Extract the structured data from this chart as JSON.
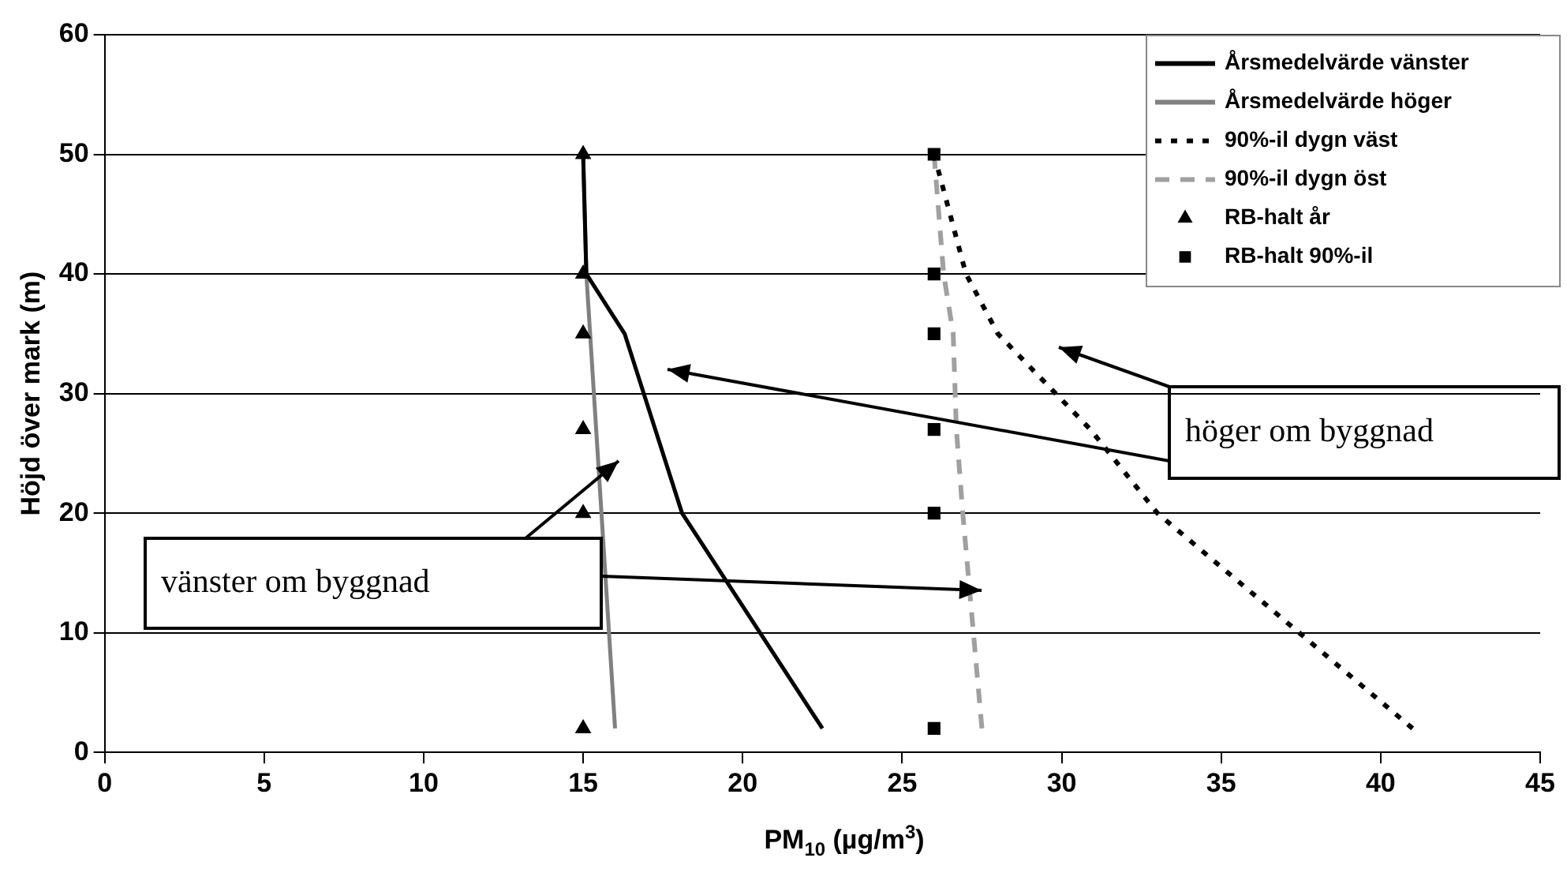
{
  "chart_data": {
    "type": "line",
    "xlabel": "PM$_{10}$ (µg/m$^{3}$)",
    "ylabel": "Höjd över mark (m)",
    "xlim": [
      0,
      45
    ],
    "xticks": [
      0,
      5,
      10,
      15,
      20,
      25,
      30,
      35,
      40,
      45
    ],
    "ylim": [
      0,
      60
    ],
    "yticks": [
      0,
      10,
      20,
      30,
      40,
      50,
      60
    ],
    "grid": "y",
    "legend": "top right",
    "series": [
      {
        "name": "Årsmedelvärde vänster",
        "color": "#000000",
        "line_style": "solid",
        "marker": "none",
        "x": [
          15,
          15.1,
          16.3,
          18.1,
          22.5
        ],
        "values": [
          50,
          40,
          35,
          20,
          2
        ]
      },
      {
        "name": "Årsmedelvärde höger",
        "color": "#808080",
        "line_style": "solid",
        "marker": "none",
        "x": [
          15,
          15.1,
          16
        ],
        "values": [
          50,
          40,
          2
        ]
      },
      {
        "name": "90%-il dygn väst",
        "color": "#000000",
        "line_style": "dotted",
        "marker": "none",
        "x": [
          26,
          27,
          28,
          30.9,
          33,
          41
        ],
        "values": [
          50,
          40,
          35,
          27,
          20,
          2
        ]
      },
      {
        "name": "90%-il dygn öst",
        "color": "#a0a0a0",
        "line_style": "dashed",
        "marker": "none",
        "x": [
          26,
          26.3,
          26.6,
          26.7,
          26.9,
          27.5
        ],
        "values": [
          50,
          40,
          35,
          27,
          20,
          2
        ]
      },
      {
        "name": "RB-halt år",
        "type": "scatter",
        "color": "#000000",
        "marker": "triangle",
        "x": [
          15,
          15,
          15,
          15,
          15,
          15
        ],
        "values": [
          50,
          40,
          35,
          27,
          20,
          2
        ]
      },
      {
        "name": "RB-halt 90%-il",
        "type": "scatter",
        "color": "#000000",
        "marker": "square",
        "x": [
          26,
          26,
          26,
          26,
          26,
          26
        ],
        "values": [
          50,
          40,
          35,
          27,
          20,
          2
        ]
      }
    ],
    "annotations": [
      "höger om byggnad",
      "vänster om byggnad"
    ]
  }
}
